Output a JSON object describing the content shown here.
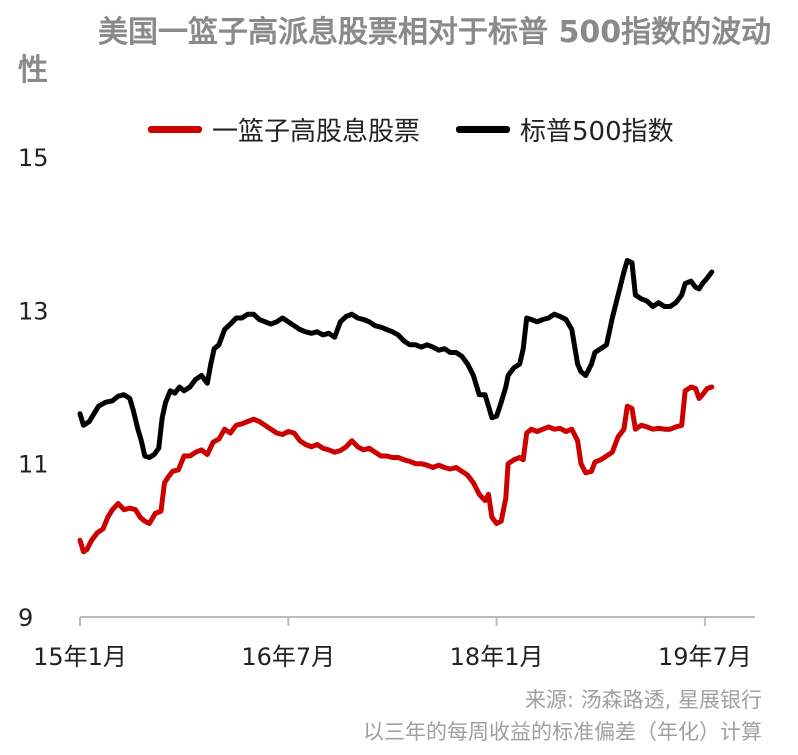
{
  "title": "美国一篮子高派息股票相对于标普 500指数的波动性",
  "footer": {
    "source": "来源: 汤森路透, 星展银行",
    "note": "以三年的每周收益的标准偏差（年化）计算"
  },
  "colors": {
    "series_red": "#cc0000",
    "series_black": "#000000",
    "axis": "#bbbbbb"
  },
  "chart_data": {
    "type": "line",
    "title": "美国一篮子高派息股票相对于标普 500指数的波动性",
    "xlabel": "",
    "ylabel": "",
    "ylim": [
      9,
      15
    ],
    "yticks": [
      9,
      11,
      13,
      15
    ],
    "xlim": [
      0,
      56
    ],
    "xticks": [
      {
        "value": 0,
        "label": "15年1月"
      },
      {
        "value": 18,
        "label": "16年7月"
      },
      {
        "value": 36,
        "label": "18年1月"
      },
      {
        "value": 54,
        "label": "19年7月"
      }
    ],
    "x_unit": "months since 2015-01",
    "grid": false,
    "legend": "top",
    "series": [
      {
        "name": "一篮子高股息股票",
        "color": "#cc0000",
        "points": [
          [
            0.0,
            10.0
          ],
          [
            0.3,
            9.85
          ],
          [
            0.6,
            9.88
          ],
          [
            1.0,
            10.0
          ],
          [
            1.5,
            10.1
          ],
          [
            2.0,
            10.15
          ],
          [
            2.4,
            10.3
          ],
          [
            2.8,
            10.4
          ],
          [
            3.3,
            10.48
          ],
          [
            3.8,
            10.4
          ],
          [
            4.3,
            10.42
          ],
          [
            4.8,
            10.4
          ],
          [
            5.2,
            10.3
          ],
          [
            5.6,
            10.25
          ],
          [
            6.0,
            10.22
          ],
          [
            6.5,
            10.35
          ],
          [
            7.0,
            10.38
          ],
          [
            7.3,
            10.75
          ],
          [
            7.6,
            10.82
          ],
          [
            8.0,
            10.9
          ],
          [
            8.5,
            10.92
          ],
          [
            9.0,
            11.1
          ],
          [
            9.5,
            11.1
          ],
          [
            10.0,
            11.15
          ],
          [
            10.5,
            11.18
          ],
          [
            11.0,
            11.12
          ],
          [
            11.5,
            11.28
          ],
          [
            12.0,
            11.32
          ],
          [
            12.5,
            11.45
          ],
          [
            13.0,
            11.4
          ],
          [
            13.5,
            11.5
          ],
          [
            14.0,
            11.52
          ],
          [
            14.5,
            11.55
          ],
          [
            15.0,
            11.58
          ],
          [
            15.5,
            11.55
          ],
          [
            16.0,
            11.5
          ],
          [
            16.5,
            11.45
          ],
          [
            17.0,
            11.4
          ],
          [
            17.5,
            11.38
          ],
          [
            18.0,
            11.42
          ],
          [
            18.5,
            11.4
          ],
          [
            19.0,
            11.3
          ],
          [
            19.5,
            11.25
          ],
          [
            20.0,
            11.22
          ],
          [
            20.5,
            11.25
          ],
          [
            21.0,
            11.2
          ],
          [
            21.5,
            11.18
          ],
          [
            22.0,
            11.15
          ],
          [
            22.5,
            11.17
          ],
          [
            23.0,
            11.22
          ],
          [
            23.5,
            11.3
          ],
          [
            24.0,
            11.22
          ],
          [
            24.5,
            11.18
          ],
          [
            25.0,
            11.2
          ],
          [
            25.5,
            11.15
          ],
          [
            26.0,
            11.1
          ],
          [
            26.5,
            11.1
          ],
          [
            27.0,
            11.08
          ],
          [
            27.5,
            11.08
          ],
          [
            28.0,
            11.05
          ],
          [
            28.5,
            11.03
          ],
          [
            29.0,
            11.0
          ],
          [
            29.5,
            11.0
          ],
          [
            30.0,
            10.98
          ],
          [
            30.5,
            10.95
          ],
          [
            31.0,
            10.98
          ],
          [
            31.5,
            10.95
          ],
          [
            32.0,
            10.93
          ],
          [
            32.5,
            10.95
          ],
          [
            33.0,
            10.9
          ],
          [
            33.5,
            10.85
          ],
          [
            34.0,
            10.75
          ],
          [
            34.5,
            10.6
          ],
          [
            35.0,
            10.52
          ],
          [
            35.3,
            10.6
          ],
          [
            35.6,
            10.3
          ],
          [
            36.0,
            10.22
          ],
          [
            36.4,
            10.25
          ],
          [
            36.8,
            10.55
          ],
          [
            37.0,
            11.0
          ],
          [
            37.5,
            11.05
          ],
          [
            38.0,
            11.08
          ],
          [
            38.3,
            11.05
          ],
          [
            38.6,
            11.4
          ],
          [
            39.0,
            11.45
          ],
          [
            39.5,
            11.42
          ],
          [
            40.0,
            11.45
          ],
          [
            40.5,
            11.48
          ],
          [
            41.0,
            11.45
          ],
          [
            41.5,
            11.46
          ],
          [
            42.0,
            11.42
          ],
          [
            42.5,
            11.45
          ],
          [
            43.0,
            11.3
          ],
          [
            43.3,
            11.0
          ],
          [
            43.7,
            10.88
          ],
          [
            44.2,
            10.9
          ],
          [
            44.5,
            11.02
          ],
          [
            45.0,
            11.05
          ],
          [
            45.5,
            11.1
          ],
          [
            46.0,
            11.15
          ],
          [
            46.5,
            11.35
          ],
          [
            47.0,
            11.45
          ],
          [
            47.3,
            11.75
          ],
          [
            47.7,
            11.72
          ],
          [
            48.0,
            11.45
          ],
          [
            48.5,
            11.5
          ],
          [
            49.0,
            11.48
          ],
          [
            49.5,
            11.45
          ],
          [
            50.0,
            11.46
          ],
          [
            50.5,
            11.45
          ],
          [
            51.0,
            11.45
          ],
          [
            51.5,
            11.48
          ],
          [
            52.0,
            11.5
          ],
          [
            52.3,
            11.95
          ],
          [
            52.8,
            12.0
          ],
          [
            53.2,
            11.98
          ],
          [
            53.5,
            11.85
          ],
          [
            53.8,
            11.9
          ],
          [
            54.2,
            11.98
          ],
          [
            54.6,
            12.0
          ]
        ]
      },
      {
        "name": "标普500指数",
        "color": "#000000",
        "points": [
          [
            0.0,
            11.65
          ],
          [
            0.3,
            11.5
          ],
          [
            0.8,
            11.55
          ],
          [
            1.2,
            11.65
          ],
          [
            1.6,
            11.75
          ],
          [
            2.2,
            11.8
          ],
          [
            2.8,
            11.82
          ],
          [
            3.3,
            11.88
          ],
          [
            3.8,
            11.9
          ],
          [
            4.3,
            11.85
          ],
          [
            4.6,
            11.7
          ],
          [
            5.0,
            11.45
          ],
          [
            5.3,
            11.3
          ],
          [
            5.6,
            11.1
          ],
          [
            6.0,
            11.08
          ],
          [
            6.4,
            11.12
          ],
          [
            6.8,
            11.2
          ],
          [
            7.1,
            11.6
          ],
          [
            7.4,
            11.8
          ],
          [
            7.8,
            11.95
          ],
          [
            8.2,
            11.92
          ],
          [
            8.6,
            12.0
          ],
          [
            9.0,
            11.95
          ],
          [
            9.5,
            12.0
          ],
          [
            10.0,
            12.1
          ],
          [
            10.5,
            12.15
          ],
          [
            11.0,
            12.05
          ],
          [
            11.3,
            12.3
          ],
          [
            11.6,
            12.5
          ],
          [
            12.0,
            12.55
          ],
          [
            12.5,
            12.75
          ],
          [
            13.0,
            12.82
          ],
          [
            13.5,
            12.9
          ],
          [
            14.0,
            12.9
          ],
          [
            14.5,
            12.95
          ],
          [
            15.0,
            12.95
          ],
          [
            15.5,
            12.88
          ],
          [
            16.0,
            12.85
          ],
          [
            16.5,
            12.82
          ],
          [
            17.0,
            12.85
          ],
          [
            17.5,
            12.9
          ],
          [
            18.0,
            12.85
          ],
          [
            18.5,
            12.8
          ],
          [
            19.0,
            12.75
          ],
          [
            19.5,
            12.72
          ],
          [
            20.0,
            12.7
          ],
          [
            20.5,
            12.72
          ],
          [
            21.0,
            12.68
          ],
          [
            21.5,
            12.7
          ],
          [
            22.0,
            12.65
          ],
          [
            22.5,
            12.85
          ],
          [
            23.0,
            12.92
          ],
          [
            23.5,
            12.95
          ],
          [
            24.0,
            12.9
          ],
          [
            24.5,
            12.88
          ],
          [
            25.0,
            12.85
          ],
          [
            25.5,
            12.8
          ],
          [
            26.0,
            12.78
          ],
          [
            26.5,
            12.75
          ],
          [
            27.0,
            12.72
          ],
          [
            27.5,
            12.68
          ],
          [
            28.0,
            12.6
          ],
          [
            28.5,
            12.55
          ],
          [
            29.0,
            12.55
          ],
          [
            29.5,
            12.52
          ],
          [
            30.0,
            12.55
          ],
          [
            30.5,
            12.52
          ],
          [
            31.0,
            12.48
          ],
          [
            31.5,
            12.5
          ],
          [
            32.0,
            12.45
          ],
          [
            32.5,
            12.45
          ],
          [
            33.0,
            12.4
          ],
          [
            33.5,
            12.3
          ],
          [
            34.0,
            12.15
          ],
          [
            34.5,
            11.9
          ],
          [
            35.0,
            11.9
          ],
          [
            35.3,
            11.75
          ],
          [
            35.6,
            11.6
          ],
          [
            36.0,
            11.62
          ],
          [
            36.4,
            11.8
          ],
          [
            36.8,
            12.0
          ],
          [
            37.0,
            12.15
          ],
          [
            37.5,
            12.25
          ],
          [
            38.0,
            12.3
          ],
          [
            38.3,
            12.5
          ],
          [
            38.6,
            12.9
          ],
          [
            39.0,
            12.88
          ],
          [
            39.5,
            12.85
          ],
          [
            40.0,
            12.88
          ],
          [
            40.5,
            12.9
          ],
          [
            41.0,
            12.95
          ],
          [
            41.5,
            12.92
          ],
          [
            42.0,
            12.88
          ],
          [
            42.5,
            12.75
          ],
          [
            43.0,
            12.3
          ],
          [
            43.3,
            12.2
          ],
          [
            43.7,
            12.15
          ],
          [
            44.2,
            12.3
          ],
          [
            44.5,
            12.45
          ],
          [
            45.0,
            12.5
          ],
          [
            45.5,
            12.55
          ],
          [
            46.0,
            12.9
          ],
          [
            46.5,
            13.2
          ],
          [
            47.0,
            13.5
          ],
          [
            47.3,
            13.65
          ],
          [
            47.7,
            13.62
          ],
          [
            48.0,
            13.2
          ],
          [
            48.5,
            13.15
          ],
          [
            49.0,
            13.12
          ],
          [
            49.5,
            13.05
          ],
          [
            50.0,
            13.1
          ],
          [
            50.5,
            13.05
          ],
          [
            51.0,
            13.05
          ],
          [
            51.5,
            13.1
          ],
          [
            52.0,
            13.2
          ],
          [
            52.3,
            13.35
          ],
          [
            52.8,
            13.38
          ],
          [
            53.2,
            13.3
          ],
          [
            53.5,
            13.28
          ],
          [
            53.8,
            13.35
          ],
          [
            54.2,
            13.42
          ],
          [
            54.6,
            13.5
          ]
        ]
      }
    ]
  }
}
